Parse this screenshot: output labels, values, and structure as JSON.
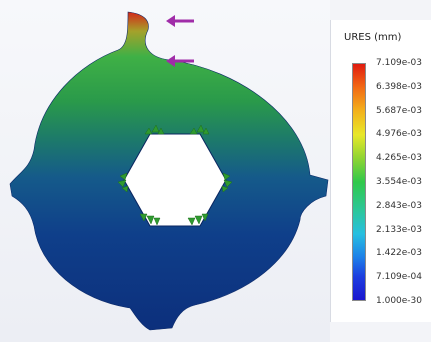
{
  "legend": {
    "title": "URES (mm)",
    "ticks": [
      "7.109e-03",
      "6.398e-03",
      "5.687e-03",
      "4.976e-03",
      "4.265e-03",
      "3.554e-03",
      "2.843e-03",
      "2.133e-03",
      "1.422e-03",
      "7.109e-04",
      "1.000e-30"
    ]
  },
  "colors": {
    "max": "#e01b0f",
    "mid": "#30c84a",
    "min": "#1a16cf",
    "part_body": "#0f3f8a",
    "fixture": "#2f9a2f",
    "load_arrow": "#a02ca8"
  },
  "icons": {
    "load_arrow": "force-arrow-icon",
    "fixture": "fixture-icon"
  }
}
